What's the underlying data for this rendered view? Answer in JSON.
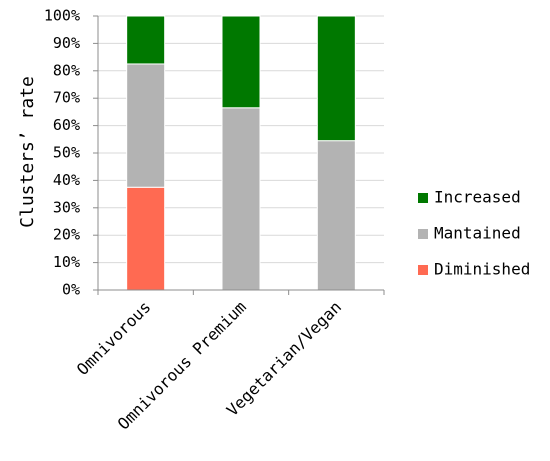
{
  "chart_data": {
    "type": "bar",
    "stacked": true,
    "percent": true,
    "categories": [
      "Omnivorous",
      "Omnivorous Premium",
      "Vegetarian/Vegan"
    ],
    "series": [
      {
        "name": "Diminished",
        "color": "#ff6a52",
        "values": [
          37.5,
          0,
          0
        ]
      },
      {
        "name": "Mantained",
        "color": "#b3b3b3",
        "values": [
          45,
          66.5,
          54.5
        ]
      },
      {
        "name": "Increased",
        "color": "#007800",
        "values": [
          17.5,
          33.5,
          45.5
        ]
      }
    ],
    "ylabel": "Clusters’ rate",
    "xlabel": "",
    "title": "",
    "ylim": [
      0,
      100
    ],
    "yticks": [
      "0%",
      "10%",
      "20%",
      "30%",
      "40%",
      "50%",
      "60%",
      "70%",
      "80%",
      "90%",
      "100%"
    ],
    "grid": true,
    "legend": "right",
    "legend_order": [
      "Increased",
      "Mantained",
      "Diminished"
    ]
  }
}
